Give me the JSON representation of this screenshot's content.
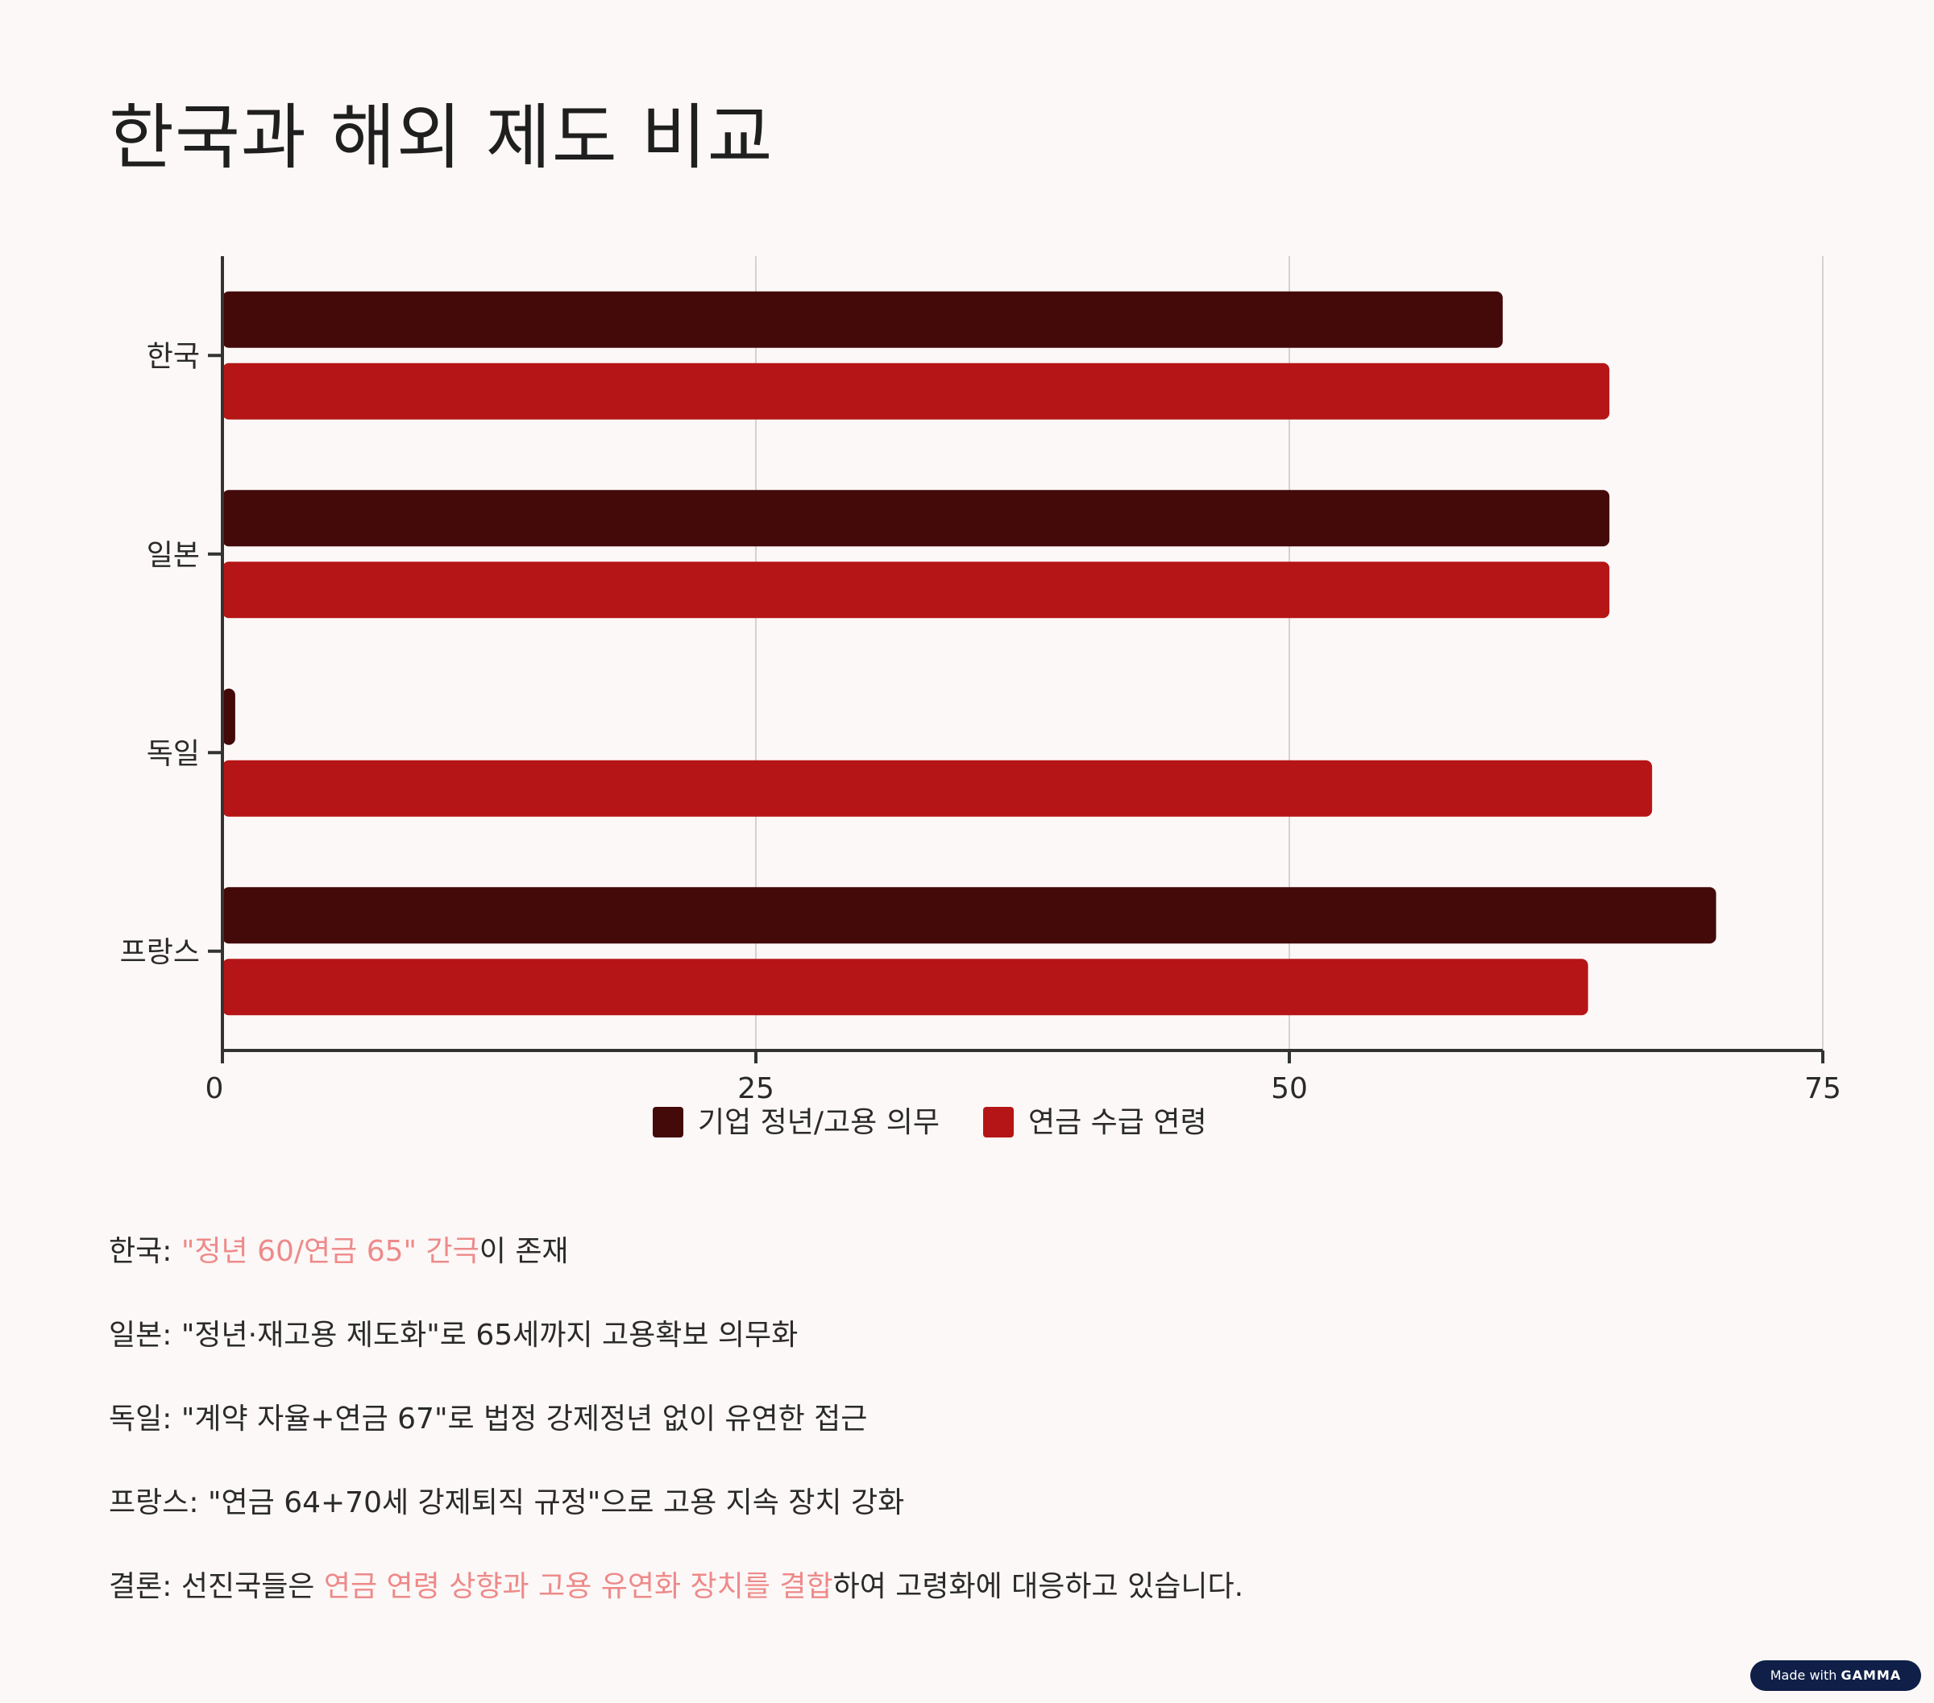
{
  "title": "한국과 해외 제도 비교",
  "chart_data": {
    "type": "bar",
    "orientation": "horizontal",
    "categories": [
      "한국",
      "일본",
      "독일",
      "프랑스"
    ],
    "series": [
      {
        "name": "기업 정년/고용 의무",
        "color": "#440909",
        "values": [
          60,
          65,
          0.6,
          70
        ]
      },
      {
        "name": "연금 수급 연령",
        "color": "#b51516",
        "values": [
          65,
          65,
          67,
          64
        ]
      }
    ],
    "xlim": [
      0,
      75
    ],
    "xticks": [
      "0",
      "25",
      "50",
      "75"
    ],
    "grid": true,
    "legend_position": "bottom-center",
    "xlabel": "",
    "ylabel": ""
  },
  "bullets": [
    {
      "label": "한국",
      "sep": ": ",
      "pre": "",
      "highlight": "\"정년 60/연금 65\" 간극",
      "post": "이 존재"
    },
    {
      "label": "일본",
      "sep": ": ",
      "pre": "\"정년·재고용 제도화\"로 65세까지 고용확보 의무화",
      "highlight": "",
      "post": ""
    },
    {
      "label": "독일",
      "sep": ": ",
      "pre": "\"계약 자율+연금 67\"로 법정 강제정년 없이 유연한 접근",
      "highlight": "",
      "post": ""
    },
    {
      "label": "프랑스",
      "sep": ": ",
      "pre": "\"연금 64+70세 강제퇴직 규정\"으로 고용 지속 장치 강화",
      "highlight": "",
      "post": ""
    },
    {
      "label": "결론",
      "sep": ": ",
      "pre": "선진국들은 ",
      "highlight": "연금 연령 상향과 고용 유연화 장치를 결합",
      "post": "하여 고령화에 대응하고 있습니다."
    }
  ],
  "badge": {
    "made_with": "Made with",
    "brand": "GAMMA"
  },
  "colors": {
    "background": "#fcf8f7",
    "highlight": "#ee8a8a",
    "axis": "#333333",
    "grid": "#d6d2d0"
  }
}
